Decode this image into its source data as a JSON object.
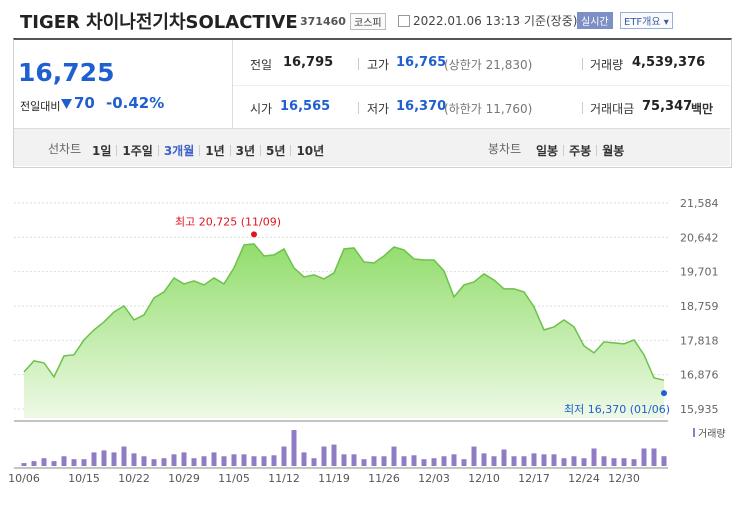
{
  "header": {
    "title": "TIGER 차이나전기차SOLACTIVE",
    "code": "371460",
    "market": "코스피",
    "timestamp": "2022.01.06 13:13 기준(장중)",
    "realtime_button": "실시간",
    "etf_button": "ETF개요"
  },
  "price": {
    "current": "16,725",
    "change_label": "전일대비",
    "change": "70",
    "change_rate": "-0.42%"
  },
  "stats": [
    {
      "label": "전일",
      "value": "16,795"
    },
    {
      "label": "고가",
      "value": "16,765",
      "extra": "(상한가 21,830)"
    },
    {
      "label": "거래량",
      "value": "4,539,376"
    },
    {
      "label": "시가",
      "value": "16,565"
    },
    {
      "label": "저가",
      "value": "16,370",
      "extra": "(하한가 11,760)"
    },
    {
      "label": "거래대금",
      "value": "75,347",
      "unit": "백만"
    }
  ],
  "tabs": {
    "line_label": "선차트",
    "line_periods": [
      "1일",
      "1주일",
      "3개월",
      "1년",
      "3년",
      "5년",
      "10년"
    ],
    "active": "3개월",
    "candle_label": "봉차트",
    "candle_periods": [
      "일봉",
      "주봉",
      "월봉"
    ]
  },
  "chart_data": {
    "type": "area",
    "categories": [
      "10/06",
      null,
      null,
      null,
      null,
      null,
      "10/15",
      null,
      null,
      null,
      null,
      "10/22",
      null,
      null,
      null,
      null,
      "10/29",
      null,
      null,
      null,
      null,
      "11/05",
      null,
      null,
      null,
      null,
      "11/12",
      null,
      null,
      null,
      null,
      "11/19",
      null,
      null,
      null,
      null,
      "11/26",
      null,
      null,
      null,
      null,
      "12/03",
      null,
      null,
      null,
      null,
      "12/10",
      null,
      null,
      null,
      null,
      "12/17",
      null,
      null,
      null,
      null,
      "12/24",
      null,
      null,
      null,
      "12/30",
      null,
      null,
      null,
      null
    ],
    "series": [
      {
        "color": "#6cc24a",
        "values": [
          16954,
          17255,
          17200,
          16816,
          17392,
          17420,
          17830,
          18104,
          18323,
          18597,
          18762,
          18378,
          18515,
          18981,
          19146,
          19529,
          19365,
          19447,
          19337,
          19529,
          19365,
          19803,
          20434,
          20461,
          20132,
          20160,
          20324,
          19803,
          19556,
          19611,
          19502,
          19666,
          20324,
          20351,
          19967,
          19940,
          20132,
          20379,
          20296,
          20050,
          20022,
          20022,
          19721,
          19009,
          19337,
          19420,
          19639,
          19474,
          19228,
          19228,
          19146,
          18735,
          18104,
          18186,
          18378,
          18186,
          17666,
          17474,
          17776,
          17748,
          17721,
          17830,
          17420,
          16789,
          16725
        ]
      },
      {
        "name": "거래량",
        "type": "bar",
        "color": "#8f7cc4",
        "values": [
          1350000,
          2250000,
          3600000,
          2250000,
          4500000,
          3150000,
          3150000,
          6300000,
          7200000,
          6300000,
          9000000,
          5850000,
          4500000,
          3150000,
          3600000,
          5400000,
          6300000,
          3600000,
          4500000,
          6300000,
          4500000,
          5400000,
          5400000,
          4500000,
          4500000,
          4950000,
          9000000,
          16650000,
          6300000,
          3600000,
          9000000,
          9900000,
          5400000,
          5400000,
          3150000,
          4500000,
          4500000,
          9000000,
          4500000,
          4950000,
          3150000,
          3600000,
          4500000,
          5400000,
          3150000,
          9000000,
          5850000,
          4500000,
          7650000,
          4500000,
          4500000,
          5850000,
          5400000,
          5400000,
          3600000,
          4500000,
          3600000,
          8100000,
          4500000,
          3600000,
          3600000,
          3150000,
          8100000,
          8100000,
          4539376
        ]
      }
    ],
    "ylim": [
      15935,
      21584
    ],
    "yticks": [
      {
        "value": 15935,
        "label": "15,935"
      },
      {
        "value": 16876,
        "label": "16,876"
      },
      {
        "value": 17818,
        "label": "17,818"
      },
      {
        "value": 18759,
        "label": "18,759"
      },
      {
        "value": 19701,
        "label": "19,701"
      },
      {
        "value": 20642,
        "label": "20,642"
      },
      {
        "value": 21584,
        "label": "21,584"
      }
    ],
    "grid": true,
    "annotations": [
      {
        "kind": "max",
        "text": "최고 20,725 (11/09)",
        "value": 20725,
        "color": "#e0141e"
      },
      {
        "kind": "min",
        "text": "최저 16,370 (01/06)",
        "value": 16370,
        "color": "#1f5fd1"
      }
    ]
  }
}
